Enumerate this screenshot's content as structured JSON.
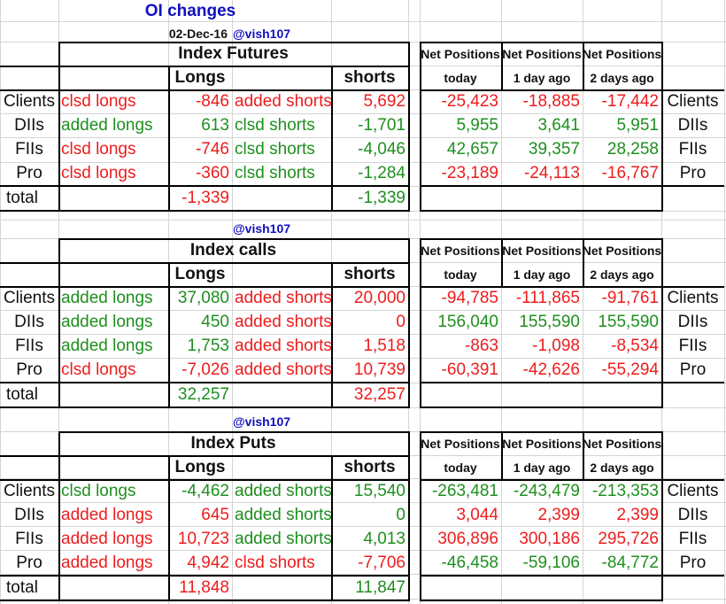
{
  "page": {
    "title": "OI changes",
    "date": "02-Dec-16",
    "handle": "@vish107"
  },
  "net_positions_header": {
    "label": "Net Positions",
    "today": "today",
    "one_day_ago": "1 day ago",
    "two_days_ago": "2 days ago"
  },
  "columns": {
    "longs": "Longs",
    "shorts": "shorts",
    "total": "total"
  },
  "sections": [
    {
      "title": "Index Futures",
      "handle": "@vish107",
      "rows": [
        {
          "name": "Clients",
          "long_label": "clsd longs",
          "long_label_color": "red",
          "long_value": "-846",
          "long_value_color": "red",
          "short_label": "added shorts",
          "short_label_color": "red",
          "short_value": "5,692",
          "short_value_color": "red",
          "np_today": "-25,423",
          "np_today_color": "red",
          "np_1d": "-18,885",
          "np_1d_color": "red",
          "np_2d": "-17,442",
          "np_2d_color": "red"
        },
        {
          "name": "DIIs",
          "long_label": "added longs",
          "long_label_color": "green",
          "long_value": "613",
          "long_value_color": "green",
          "short_label": "clsd shorts",
          "short_label_color": "green",
          "short_value": "-1,701",
          "short_value_color": "green",
          "np_today": "5,955",
          "np_today_color": "green",
          "np_1d": "3,641",
          "np_1d_color": "green",
          "np_2d": "5,951",
          "np_2d_color": "green"
        },
        {
          "name": "FIIs",
          "long_label": "clsd longs",
          "long_label_color": "red",
          "long_value": "-746",
          "long_value_color": "red",
          "short_label": "clsd shorts",
          "short_label_color": "green",
          "short_value": "-4,046",
          "short_value_color": "green",
          "np_today": "42,657",
          "np_today_color": "green",
          "np_1d": "39,357",
          "np_1d_color": "green",
          "np_2d": "28,258",
          "np_2d_color": "green"
        },
        {
          "name": "Pro",
          "long_label": "clsd longs",
          "long_label_color": "red",
          "long_value": "-360",
          "long_value_color": "red",
          "short_label": "clsd shorts",
          "short_label_color": "green",
          "short_value": "-1,284",
          "short_value_color": "green",
          "np_today": "-23,189",
          "np_today_color": "red",
          "np_1d": "-24,113",
          "np_1d_color": "red",
          "np_2d": "-16,767",
          "np_2d_color": "red"
        }
      ],
      "total_long": "-1,339",
      "total_long_color": "red",
      "total_short": "-1,339",
      "total_short_color": "green"
    },
    {
      "title": "Index calls",
      "handle": "@vish107",
      "rows": [
        {
          "name": "Clients",
          "long_label": "added longs",
          "long_label_color": "green",
          "long_value": "37,080",
          "long_value_color": "green",
          "short_label": "added shorts",
          "short_label_color": "red",
          "short_value": "20,000",
          "short_value_color": "red",
          "np_today": "-94,785",
          "np_today_color": "red",
          "np_1d": "-111,865",
          "np_1d_color": "red",
          "np_2d": "-91,761",
          "np_2d_color": "red"
        },
        {
          "name": "DIIs",
          "long_label": "added longs",
          "long_label_color": "green",
          "long_value": "450",
          "long_value_color": "green",
          "short_label": "added shorts",
          "short_label_color": "red",
          "short_value": "0",
          "short_value_color": "red",
          "np_today": "156,040",
          "np_today_color": "green",
          "np_1d": "155,590",
          "np_1d_color": "green",
          "np_2d": "155,590",
          "np_2d_color": "green"
        },
        {
          "name": "FIIs",
          "long_label": "added longs",
          "long_label_color": "green",
          "long_value": "1,753",
          "long_value_color": "green",
          "short_label": "added shorts",
          "short_label_color": "red",
          "short_value": "1,518",
          "short_value_color": "red",
          "np_today": "-863",
          "np_today_color": "red",
          "np_1d": "-1,098",
          "np_1d_color": "red",
          "np_2d": "-8,534",
          "np_2d_color": "red"
        },
        {
          "name": "Pro",
          "long_label": "clsd longs",
          "long_label_color": "red",
          "long_value": "-7,026",
          "long_value_color": "red",
          "short_label": "added shorts",
          "short_label_color": "red",
          "short_value": "10,739",
          "short_value_color": "red",
          "np_today": "-60,391",
          "np_today_color": "red",
          "np_1d": "-42,626",
          "np_1d_color": "red",
          "np_2d": "-55,294",
          "np_2d_color": "red"
        }
      ],
      "total_long": "32,257",
      "total_long_color": "green",
      "total_short": "32,257",
      "total_short_color": "red"
    },
    {
      "title": "Index Puts",
      "handle": "@vish107",
      "rows": [
        {
          "name": "Clients",
          "long_label": "clsd longs",
          "long_label_color": "green",
          "long_value": "-4,462",
          "long_value_color": "green",
          "short_label": "added shorts",
          "short_label_color": "green",
          "short_value": "15,540",
          "short_value_color": "green",
          "np_today": "-263,481",
          "np_today_color": "green",
          "np_1d": "-243,479",
          "np_1d_color": "green",
          "np_2d": "-213,353",
          "np_2d_color": "green"
        },
        {
          "name": "DIIs",
          "long_label": "added longs",
          "long_label_color": "red",
          "long_value": "645",
          "long_value_color": "red",
          "short_label": "added shorts",
          "short_label_color": "green",
          "short_value": "0",
          "short_value_color": "green",
          "np_today": "3,044",
          "np_today_color": "red",
          "np_1d": "2,399",
          "np_1d_color": "red",
          "np_2d": "2,399",
          "np_2d_color": "red"
        },
        {
          "name": "FIIs",
          "long_label": "added longs",
          "long_label_color": "red",
          "long_value": "10,723",
          "long_value_color": "red",
          "short_label": "added shorts",
          "short_label_color": "green",
          "short_value": "4,013",
          "short_value_color": "green",
          "np_today": "306,896",
          "np_today_color": "red",
          "np_1d": "300,186",
          "np_1d_color": "red",
          "np_2d": "295,726",
          "np_2d_color": "red"
        },
        {
          "name": "Pro",
          "long_label": "added longs",
          "long_label_color": "red",
          "long_value": "4,942",
          "long_value_color": "red",
          "short_label": "clsd shorts",
          "short_label_color": "red",
          "short_value": "-7,706",
          "short_value_color": "red",
          "np_today": "-46,458",
          "np_today_color": "green",
          "np_1d": "-59,106",
          "np_1d_color": "green",
          "np_2d": "-84,772",
          "np_2d_color": "green"
        }
      ],
      "total_long": "11,848",
      "total_long_color": "red",
      "total_short": "11,847",
      "total_short_color": "green"
    }
  ],
  "colors": {
    "red": "#ee1c1c",
    "green": "#1e8f1e",
    "blue": "#1010c0",
    "black": "#111111",
    "grid": "#d4d4d4",
    "border": "#000000"
  }
}
